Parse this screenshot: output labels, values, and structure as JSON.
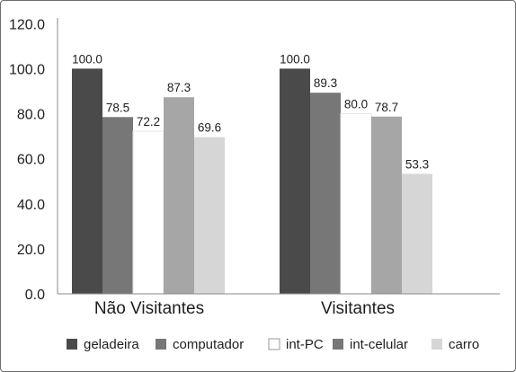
{
  "chart_data": {
    "type": "bar",
    "categories": [
      "Não Visitantes",
      "Visitantes"
    ],
    "series": [
      {
        "name": "geladeira",
        "values": [
          100.0,
          100.0
        ],
        "color": "#4a4a4a"
      },
      {
        "name": "computador",
        "values": [
          78.5,
          89.3
        ],
        "color": "#777777"
      },
      {
        "name": "int-PC",
        "values": [
          72.2,
          80.0
        ],
        "color": "#ffffff"
      },
      {
        "name": "int-celular",
        "values": [
          87.3,
          78.7
        ],
        "color": "#a6a6a6"
      },
      {
        "name": "carro",
        "values": [
          69.6,
          53.3
        ],
        "color": "#d6d6d6"
      }
    ],
    "data_labels": [
      [
        "100.0",
        "78.5",
        "72.2",
        "87.3",
        "69.6"
      ],
      [
        "100.0",
        "89.3",
        "80.0",
        "78.7",
        "53.3"
      ]
    ],
    "y_ticks": [
      "0.0",
      "20.0",
      "40.0",
      "60.0",
      "80.0",
      "100.0",
      "120.0"
    ],
    "ylim": [
      0,
      120
    ],
    "legend_position": "bottom",
    "legend_swatch_colors": [
      "#4a4a4a",
      "#777777",
      "#ffffff",
      "#777777",
      "#d6d6d6"
    ],
    "grid": false
  }
}
